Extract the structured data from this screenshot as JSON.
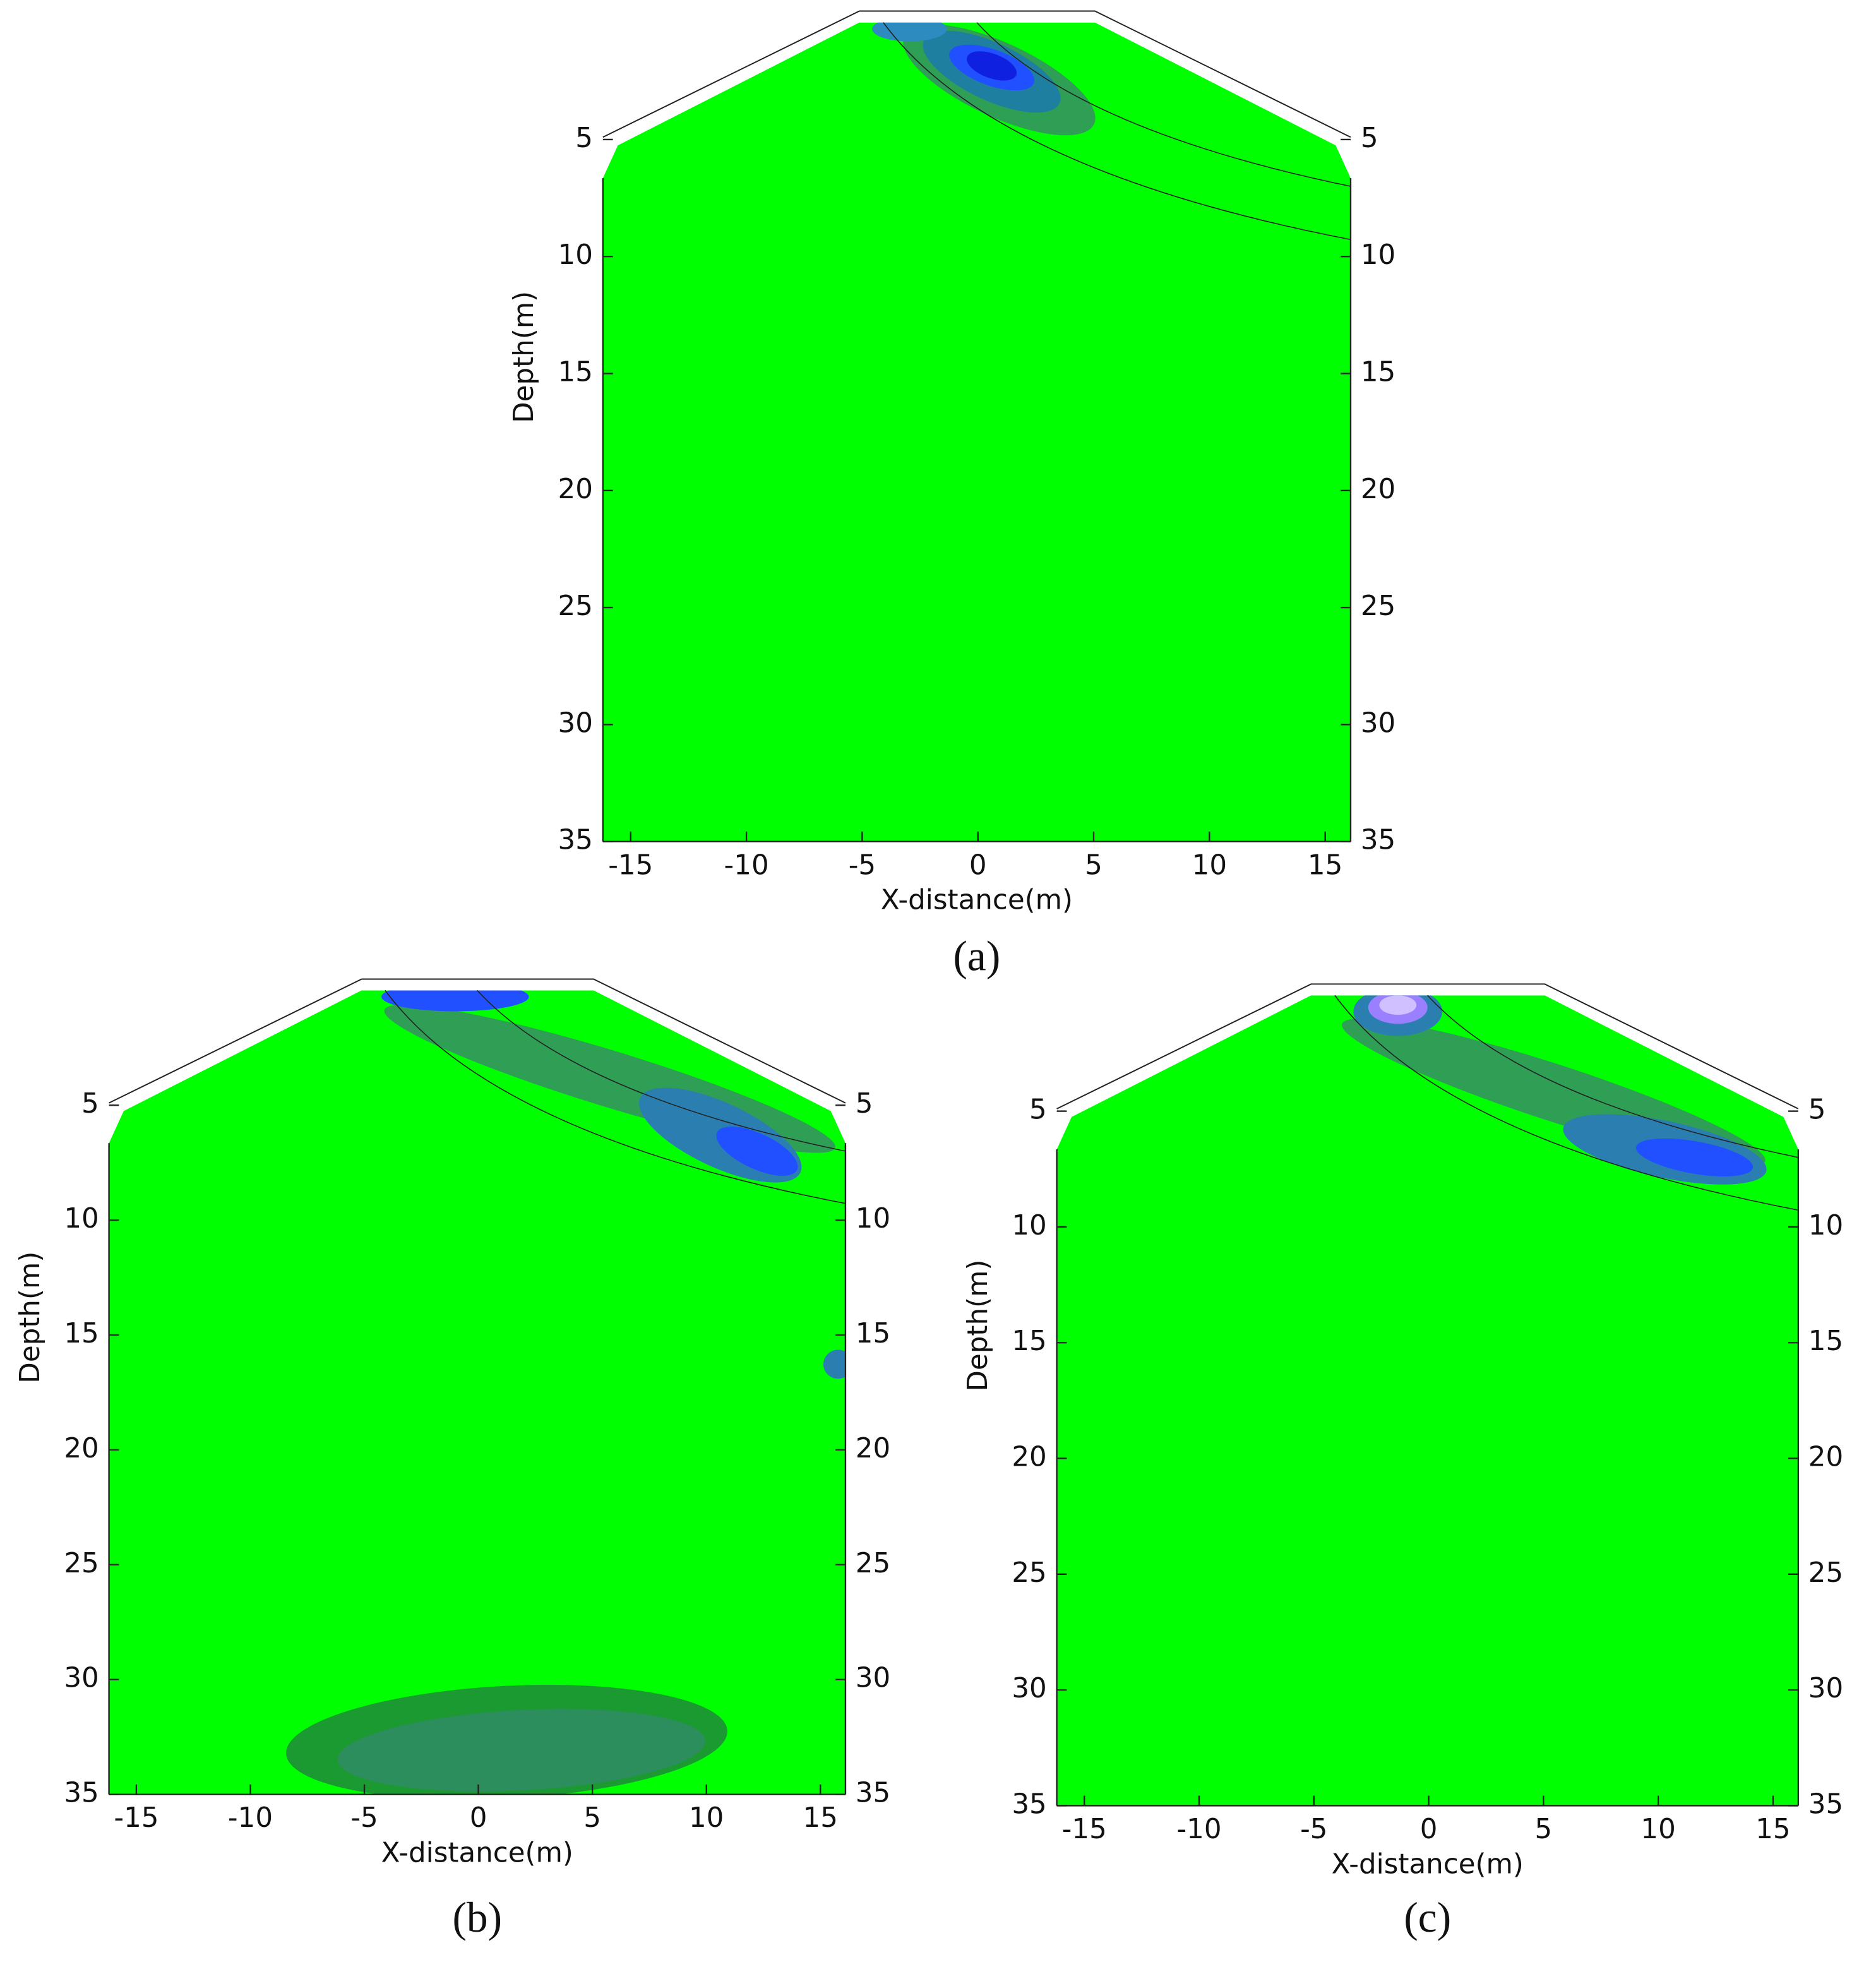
{
  "chart_data": [
    {
      "type": "contour",
      "label": "(a)",
      "xlabel": "X-distance(m)",
      "ylabel": "Depth(m)",
      "xlim": [
        -16.2,
        16.1
      ],
      "ylim": [
        0,
        35
      ],
      "y_inverted": true,
      "xticks": [
        -15,
        -10,
        -5,
        0,
        5,
        10,
        15
      ],
      "yticks": [
        5,
        10,
        15,
        20,
        25,
        30,
        35
      ],
      "color": "#00ff00"
    },
    {
      "type": "contour",
      "label": "(b)",
      "xlabel": "X-distance(m)",
      "ylabel": "Depth(m)",
      "xlim": [
        -16.2,
        16.1
      ],
      "ylim": [
        0,
        35
      ],
      "y_inverted": true,
      "xticks": [
        -15,
        -10,
        -5,
        0,
        5,
        10,
        15
      ],
      "yticks": [
        5,
        10,
        15,
        20,
        25,
        30,
        35
      ],
      "color": "#00ff00"
    },
    {
      "type": "contour",
      "label": "(c)",
      "xlabel": "X-distance(m)",
      "ylabel": "Depth(m)",
      "xlim": [
        -16.2,
        16.1
      ],
      "ylim": [
        0,
        35
      ],
      "y_inverted": true,
      "xticks": [
        -15,
        -10,
        -5,
        0,
        5,
        10,
        15
      ],
      "yticks": [
        5,
        10,
        15,
        20,
        25,
        30,
        35
      ],
      "color": "#00ff00"
    }
  ]
}
